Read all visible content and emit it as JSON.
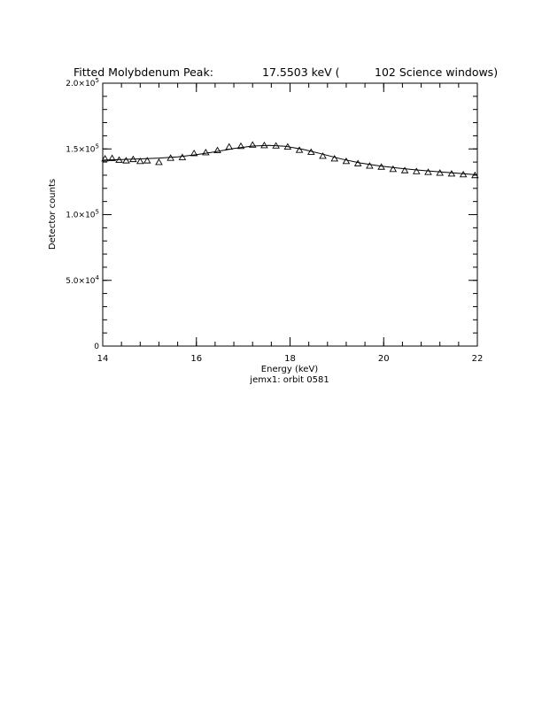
{
  "chart_data": {
    "type": "scatter",
    "title": {
      "prefix": "Fitted Molybdenum Peak:",
      "energy": "17.5503 keV (",
      "windows": "102 Science windows)"
    },
    "xlabel": "Energy (keV)",
    "subtitle": "jemx1: orbit 0581",
    "ylabel": "Detector counts",
    "xlim": [
      14,
      22
    ],
    "ylim": [
      0,
      200000
    ],
    "x_ticks": [
      {
        "value": 14,
        "label": "14"
      },
      {
        "value": 16,
        "label": "16"
      },
      {
        "value": 18,
        "label": "18"
      },
      {
        "value": 20,
        "label": "20"
      },
      {
        "value": 22,
        "label": "22"
      }
    ],
    "y_ticks": [
      {
        "value": 0,
        "mant": "0",
        "exp": ""
      },
      {
        "value": 50000,
        "mant": "5.0×10",
        "exp": "4"
      },
      {
        "value": 100000,
        "mant": "1.0×10",
        "exp": "5"
      },
      {
        "value": 150000,
        "mant": "1.5×10",
        "exp": "5"
      },
      {
        "value": 200000,
        "mant": "2.0×10",
        "exp": "5"
      }
    ],
    "x_minor_step": 0.4,
    "y_minor_step": 10000,
    "grid": false,
    "series": [
      {
        "marker": "triangle",
        "x": [
          14.05,
          14.2,
          14.35,
          14.5,
          14.65,
          14.8,
          14.95,
          15.2,
          15.45,
          15.7,
          15.95,
          16.2,
          16.45,
          16.7,
          16.95,
          17.2,
          17.45,
          17.7,
          17.95,
          18.2,
          18.45,
          18.7,
          18.95,
          19.2,
          19.45,
          19.7,
          19.95,
          20.2,
          20.45,
          20.7,
          20.95,
          21.2,
          21.45,
          21.7,
          21.95
        ],
        "y": [
          142500,
          142800,
          141500,
          141000,
          142000,
          140500,
          141000,
          139800,
          143000,
          143500,
          146500,
          147200,
          148800,
          151500,
          152000,
          153000,
          152600,
          152300,
          151500,
          149000,
          147500,
          144500,
          142500,
          140500,
          138800,
          137000,
          136200,
          134500,
          133500,
          132800,
          132200,
          131600,
          131000,
          130400,
          129800
        ]
      },
      {
        "type": "line",
        "x": [
          14.0,
          14.4,
          14.8,
          15.2,
          15.6,
          16.0,
          16.4,
          16.8,
          17.2,
          17.55,
          17.9,
          18.3,
          18.7,
          19.1,
          19.5,
          19.9,
          20.3,
          20.7,
          21.1,
          21.5,
          21.9,
          22.0
        ],
        "y": [
          141500,
          141900,
          142400,
          143000,
          144000,
          145600,
          147800,
          150300,
          152200,
          152700,
          152000,
          149500,
          146000,
          142300,
          139300,
          137100,
          135400,
          134000,
          132800,
          131700,
          130600,
          130300
        ]
      }
    ]
  }
}
